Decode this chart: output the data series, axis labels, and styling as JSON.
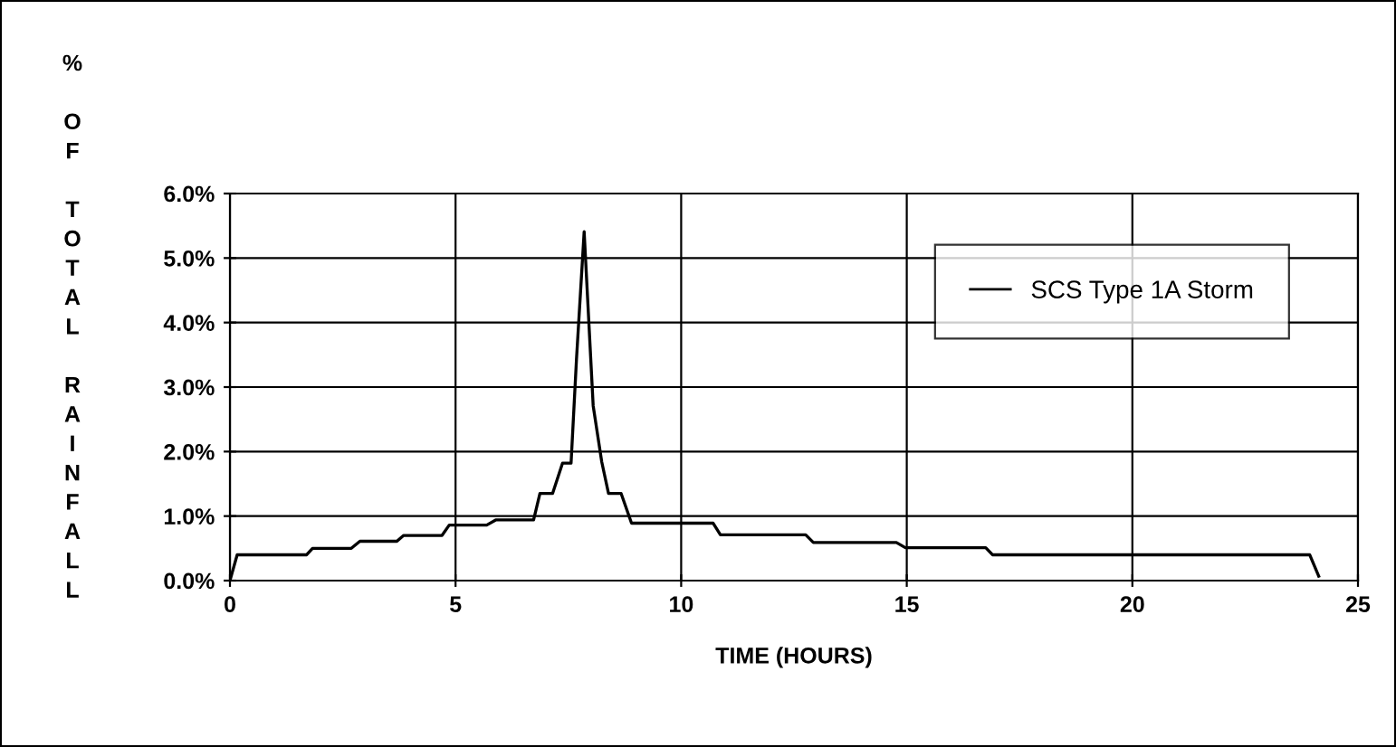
{
  "chart_data": {
    "type": "line",
    "xlabel": "TIME (HOURS)",
    "ylabel": "% OF TOTAL RAINFALL",
    "x": [
      0,
      0.16,
      1.7,
      1.83,
      2.69,
      2.88,
      3.7,
      3.85,
      4.7,
      4.86,
      5.69,
      5.89,
      6.73,
      6.87,
      7.15,
      7.37,
      7.56,
      7.68,
      7.85,
      8.05,
      8.24,
      8.39,
      8.67,
      8.9,
      10.71,
      10.87,
      12.76,
      12.93,
      14.77,
      14.97,
      16.75,
      16.9,
      23.93,
      24.13
    ],
    "series": [
      {
        "name": "SCS Type 1A Storm",
        "color": "#000000",
        "values": [
          0,
          0.4,
          0.4,
          0.5,
          0.5,
          0.61,
          0.61,
          0.7,
          0.7,
          0.86,
          0.86,
          0.94,
          0.94,
          1.35,
          1.35,
          1.82,
          1.82,
          3.43,
          5.41,
          2.71,
          1.84,
          1.35,
          1.35,
          0.89,
          0.89,
          0.71,
          0.71,
          0.59,
          0.59,
          0.51,
          0.51,
          0.4,
          0.4,
          0.07
        ]
      }
    ],
    "xlim": [
      0,
      25
    ],
    "xticks": [
      0,
      5,
      10,
      15,
      20,
      25
    ],
    "ylim": [
      0,
      6
    ],
    "yticks": [
      {
        "value": 0,
        "label": "0.0%"
      },
      {
        "value": 1,
        "label": "1.0%"
      },
      {
        "value": 2,
        "label": "2.0%"
      },
      {
        "value": 3,
        "label": "3.0%"
      },
      {
        "value": 4,
        "label": "4.0%"
      },
      {
        "value": 5,
        "label": "5.0%"
      },
      {
        "value": 6,
        "label": "6.0%"
      }
    ],
    "grid": true,
    "legend": "top right",
    "marker": "none",
    "line_style": "solid"
  }
}
